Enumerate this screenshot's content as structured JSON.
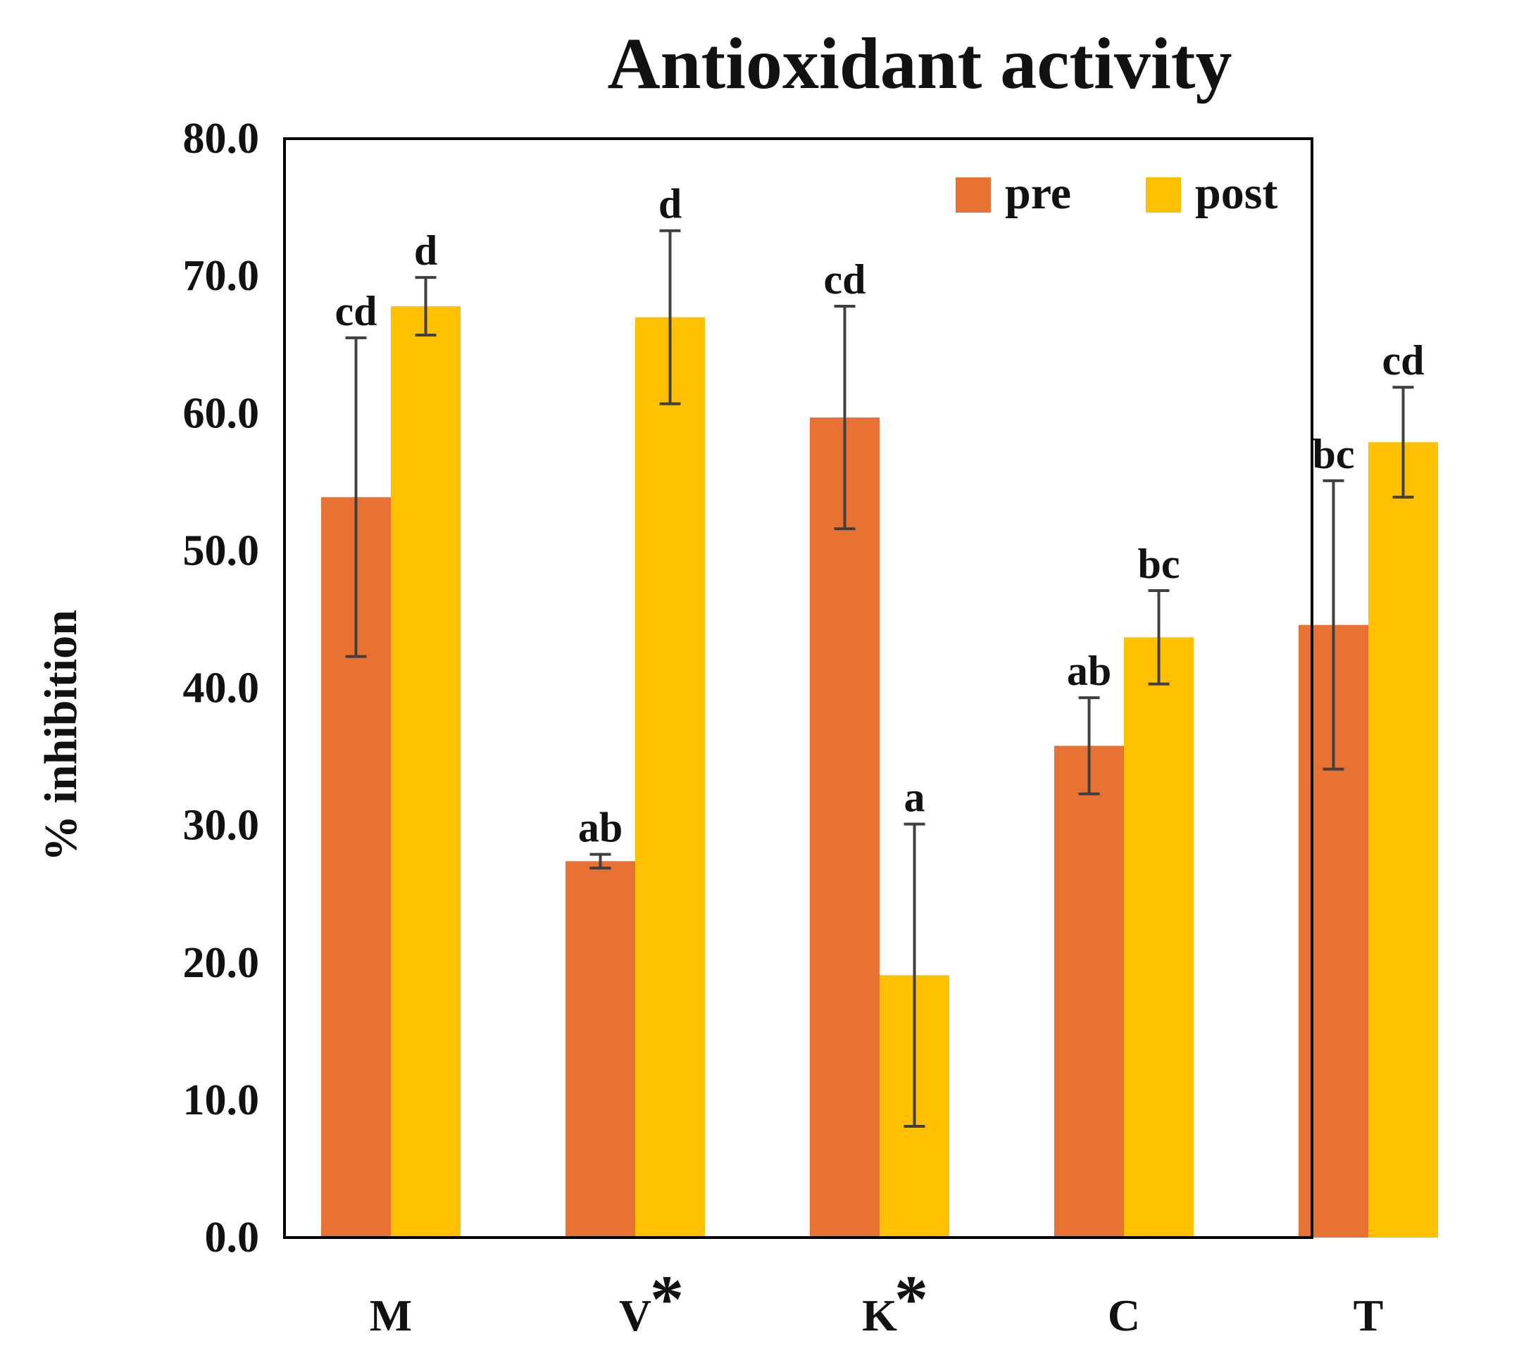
{
  "chart_data": {
    "type": "bar",
    "title": "Antioxidant activity",
    "xlabel": "",
    "ylabel": "% inhibition",
    "ylim": [
      0,
      80
    ],
    "yticks": [
      "0.0",
      "10.0",
      "20.0",
      "30.0",
      "40.0",
      "50.0",
      "60.0",
      "70.0",
      "80.0"
    ],
    "categories": [
      "M",
      "V",
      "K",
      "C",
      "T"
    ],
    "category_markers": [
      "",
      "*",
      "*",
      "",
      ""
    ],
    "legend_position": "top-right",
    "series": [
      {
        "name": "pre",
        "color": "#E87134",
        "values": [
          53.9,
          27.4,
          59.7,
          35.8,
          44.6
        ],
        "errors": [
          11.6,
          0.5,
          8.1,
          3.5,
          10.5
        ],
        "letters": [
          "cd",
          "ab",
          "cd",
          "ab",
          "bc"
        ]
      },
      {
        "name": "post",
        "color": "#FFC000",
        "values": [
          67.8,
          67.0,
          19.1,
          43.7,
          57.9
        ],
        "errors": [
          2.1,
          6.3,
          11.0,
          3.4,
          4.0
        ],
        "letters": [
          "d",
          "d",
          "a",
          "bc",
          "cd"
        ]
      }
    ]
  }
}
